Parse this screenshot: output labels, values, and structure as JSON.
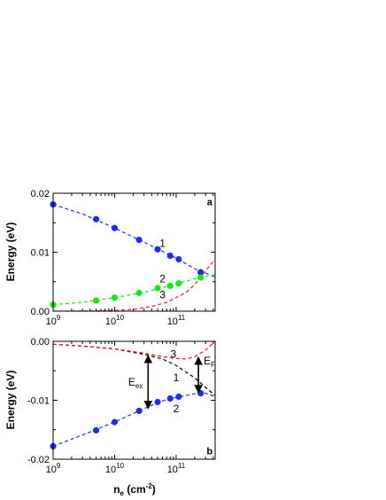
{
  "chart_data": [
    {
      "type": "line",
      "panel": "a",
      "ylabel": "Energy (eV)",
      "xlabel": "",
      "x_scale": "log",
      "xlim": [
        1000000000.0,
        430000000000.0
      ],
      "ylim": [
        0,
        0.02
      ],
      "yticks": [
        "0.00",
        "0.01",
        "0.02"
      ],
      "xticks": [
        {
          "base": "10",
          "exp": "9",
          "value": 1000000000.0
        },
        {
          "base": "10",
          "exp": "10",
          "value": 10000000000.0
        },
        {
          "base": "10",
          "exp": "11",
          "value": 100000000000.0
        }
      ],
      "series": [
        {
          "name": "1",
          "color": "#1f2ee6",
          "style": "dashed",
          "points": [
            [
              1000000000.0,
              0.0181
            ],
            [
              5000000000.0,
              0.0156
            ],
            [
              10000000000.0,
              0.0141
            ],
            [
              25000000000.0,
              0.0121
            ],
            [
              50000000000.0,
              0.0105
            ],
            [
              80000000000.0,
              0.0094
            ],
            [
              110000000000.0,
              0.0088
            ],
            [
              250000000000.0,
              0.0066
            ]
          ],
          "curve": [
            [
              1000000000.0,
              0.0181
            ],
            [
              3000000000.0,
              0.0165
            ],
            [
              10000000000.0,
              0.0141
            ],
            [
              30000000000.0,
              0.0117
            ],
            [
              100000000000.0,
              0.009
            ],
            [
              200000000000.0,
              0.0072
            ],
            [
              430000000000.0,
              0.0058
            ]
          ]
        },
        {
          "name": "2",
          "color": "#1ae61a",
          "style": "dashed",
          "points": [
            [
              1000000000.0,
              0.0011
            ],
            [
              5000000000.0,
              0.0018
            ],
            [
              10000000000.0,
              0.0023
            ],
            [
              25000000000.0,
              0.0031
            ],
            [
              50000000000.0,
              0.0039
            ],
            [
              80000000000.0,
              0.0043
            ],
            [
              110000000000.0,
              0.0047
            ],
            [
              250000000000.0,
              0.0057
            ]
          ],
          "curve": [
            [
              1000000000.0,
              0.0011
            ],
            [
              3000000000.0,
              0.0015
            ],
            [
              10000000000.0,
              0.0023
            ],
            [
              30000000000.0,
              0.0032
            ],
            [
              100000000000.0,
              0.0046
            ],
            [
              200000000000.0,
              0.0055
            ],
            [
              430000000000.0,
              0.0062
            ]
          ]
        },
        {
          "name": "3",
          "color": "#e61a1a",
          "style": "dashed",
          "points": [],
          "curve": [
            [
              1000000000.0,
              0.0
            ],
            [
              5000000000.0,
              5e-05
            ],
            [
              10000000000.0,
              0.0001
            ],
            [
              20000000000.0,
              0.0003
            ],
            [
              40000000000.0,
              0.0008
            ],
            [
              70000000000.0,
              0.0015
            ],
            [
              100000000000.0,
              0.0023
            ],
            [
              150000000000.0,
              0.0033
            ],
            [
              200000000000.0,
              0.0045
            ],
            [
              250000000000.0,
              0.0058
            ],
            [
              300000000000.0,
              0.0068
            ],
            [
              350000000000.0,
              0.0077
            ],
            [
              430000000000.0,
              0.0088
            ]
          ]
        }
      ],
      "annotations": [
        {
          "text": "1",
          "x": 60000000000.0,
          "y": 0.0115
        },
        {
          "text": "2",
          "x": 60000000000.0,
          "y": 0.0055
        },
        {
          "text": "3",
          "x": 60000000000.0,
          "y": 0.0028
        },
        {
          "text": "a",
          "x": 350000000000.0,
          "y": 0.0186
        }
      ]
    },
    {
      "type": "line",
      "panel": "b",
      "ylabel": "Energy (eV)",
      "xlabel": "n_e (cm^-2)",
      "xlabel_main": "n",
      "xlabel_sub": "e",
      "xlabel_unit": " (cm",
      "xlabel_sup": "-2",
      "xlabel_close": ")",
      "x_scale": "log",
      "xlim": [
        1000000000.0,
        430000000000.0
      ],
      "ylim": [
        -0.02,
        0.0
      ],
      "yticks": [
        "-0.02",
        "-0.01",
        "0.00"
      ],
      "xticks": [
        {
          "base": "10",
          "exp": "9",
          "value": 1000000000.0
        },
        {
          "base": "10",
          "exp": "10",
          "value": 10000000000.0
        },
        {
          "base": "10",
          "exp": "11",
          "value": 100000000000.0
        }
      ],
      "series": [
        {
          "name": "1",
          "color": "#000000",
          "style": "dashed",
          "points": [],
          "curve": [
            [
              1000000000.0,
              -0.0005
            ],
            [
              3000000000.0,
              -0.0008
            ],
            [
              10000000000.0,
              -0.0013
            ],
            [
              30000000000.0,
              -0.0022
            ],
            [
              60000000000.0,
              -0.003
            ],
            [
              100000000000.0,
              -0.0041
            ],
            [
              200000000000.0,
              -0.0062
            ],
            [
              300000000000.0,
              -0.0078
            ],
            [
              430000000000.0,
              -0.0092
            ]
          ]
        },
        {
          "name": "2",
          "color": "#1f2ee6",
          "style": "dashed",
          "points": [
            [
              1000000000.0,
              -0.0178
            ],
            [
              5000000000.0,
              -0.0151
            ],
            [
              10000000000.0,
              -0.0137
            ],
            [
              25000000000.0,
              -0.0118
            ],
            [
              50000000000.0,
              -0.0103
            ],
            [
              80000000000.0,
              -0.0097
            ],
            [
              110000000000.0,
              -0.0094
            ],
            [
              250000000000.0,
              -0.0088
            ]
          ],
          "curve": [
            [
              1000000000.0,
              -0.0178
            ],
            [
              3000000000.0,
              -0.0159
            ],
            [
              10000000000.0,
              -0.0137
            ],
            [
              30000000000.0,
              -0.0114
            ],
            [
              60000000000.0,
              -0.0101
            ],
            [
              100000000000.0,
              -0.0095
            ],
            [
              200000000000.0,
              -0.0089
            ],
            [
              300000000000.0,
              -0.0088
            ],
            [
              430000000000.0,
              -0.0094
            ]
          ]
        },
        {
          "name": "3",
          "color": "#e61a1a",
          "style": "dashed",
          "points": [],
          "curve": [
            [
              1000000000.0,
              -0.0005
            ],
            [
              3000000000.0,
              -0.0008
            ],
            [
              10000000000.0,
              -0.0013
            ],
            [
              30000000000.0,
              -0.002
            ],
            [
              60000000000.0,
              -0.0026
            ],
            [
              100000000000.0,
              -0.0029
            ],
            [
              150000000000.0,
              -0.003
            ],
            [
              200000000000.0,
              -0.0026
            ],
            [
              300000000000.0,
              -0.0015
            ],
            [
              430000000000.0,
              0.0
            ]
          ]
        }
      ],
      "markers": [
        {
          "label_main": "E",
          "label_sub": "ex",
          "x": 35000000000.0,
          "y_top": -0.0024,
          "y_bottom": -0.0114
        },
        {
          "label_main": "E",
          "label_sub": "F",
          "x": 230000000000.0,
          "y_top": -0.0027,
          "y_bottom": -0.0087
        }
      ],
      "annotations": [
        {
          "text": "3",
          "x": 90000000000.0,
          "y": -0.0022
        },
        {
          "text": "1",
          "x": 100000000000.0,
          "y": -0.0062
        },
        {
          "text": "2",
          "x": 100000000000.0,
          "y": -0.0114
        },
        {
          "text": "b",
          "x": 350000000000.0,
          "y": -0.0186
        }
      ]
    }
  ]
}
